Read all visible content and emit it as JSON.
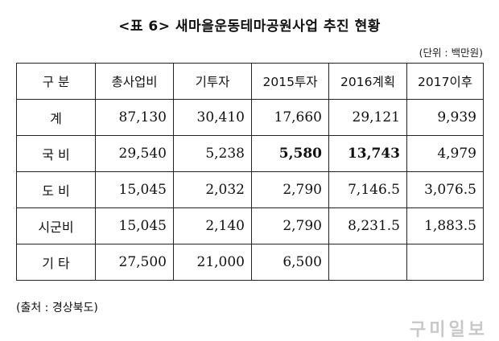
{
  "title": "<표 6> 새마을운동테마공원사업 추진 현황",
  "unit": "(단위 : 백만원)",
  "table": {
    "headers": [
      "구 분",
      "총사업비",
      "기투자",
      "2015투자",
      "2016계획",
      "2017이후"
    ],
    "rows": [
      {
        "label": "계",
        "cells": [
          "87,130",
          "30,410",
          "17,660",
          "29,121",
          "9,939"
        ]
      },
      {
        "label": "국 비",
        "cells": [
          "29,540",
          "5,238",
          "5,580",
          "13,743",
          "4,979"
        ]
      },
      {
        "label": "도 비",
        "cells": [
          "15,045",
          "2,032",
          "2,790",
          "7,146.5",
          "3,076.5"
        ]
      },
      {
        "label": "시군비",
        "cells": [
          "15,045",
          "2,140",
          "2,790",
          "8,231.5",
          "1,883.5"
        ]
      },
      {
        "label": "기 타",
        "cells": [
          "27,500",
          "21,000",
          "6,500",
          "",
          ""
        ]
      }
    ]
  },
  "source": "(출처 : 경상북도)",
  "watermark": "구미일보"
}
